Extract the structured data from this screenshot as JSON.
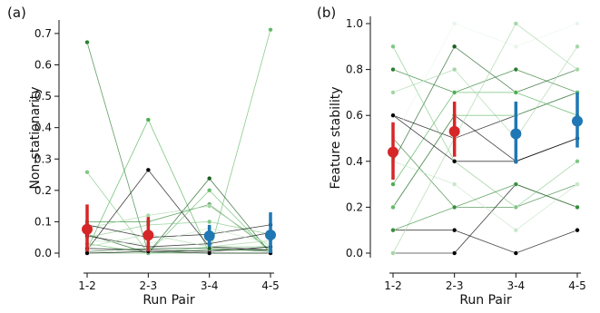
{
  "chart_data": [
    {
      "type": "line",
      "panel_label": "(a)",
      "xlabel": "Run Pair",
      "ylabel": "Non-stationarity",
      "categories": [
        "1-2",
        "2-3",
        "3-4",
        "4-5"
      ],
      "ylim": [
        0,
        0.72
      ],
      "yticks": [
        "0.0",
        "0.1",
        "0.2",
        "0.3",
        "0.4",
        "0.5",
        "0.6",
        "0.7"
      ],
      "series": [
        {
          "values": [
            0.672,
            0.0,
            0.01,
            0.01
          ],
          "color": "#2e7d32"
        },
        {
          "values": [
            0.012,
            0.425,
            0.0,
            0.0
          ],
          "color": "#4caf50"
        },
        {
          "values": [
            0.0,
            0.0,
            0.0,
            0.712
          ],
          "color": "#66bb6a"
        },
        {
          "values": [
            0.258,
            0.0,
            0.02,
            0.02
          ],
          "color": "#81c784"
        },
        {
          "values": [
            0.01,
            0.265,
            0.02,
            0.01
          ],
          "color": "#000000"
        },
        {
          "values": [
            0.06,
            0.0,
            0.238,
            0.0
          ],
          "color": "#1b5e20"
        },
        {
          "values": [
            0.03,
            0.0,
            0.2,
            0.0
          ],
          "color": "#66bb6a"
        },
        {
          "values": [
            0.1,
            0.1,
            0.155,
            0.01
          ],
          "color": "#388e3c"
        },
        {
          "values": [
            0.08,
            0.12,
            0.15,
            0.02
          ],
          "color": "#a5d6a7"
        },
        {
          "values": [
            0.05,
            0.09,
            0.1,
            0.06
          ],
          "color": "#81c784"
        },
        {
          "values": [
            0.09,
            0.05,
            0.06,
            0.09
          ],
          "color": "#000000"
        },
        {
          "values": [
            0.055,
            0.02,
            0.03,
            0.065
          ],
          "color": "#000000"
        },
        {
          "values": [
            0.04,
            0.03,
            0.08,
            0.03
          ],
          "color": "#c8e6c9"
        },
        {
          "values": [
            0.02,
            0.06,
            0.02,
            0.04
          ],
          "color": "#a5d6a7"
        },
        {
          "values": [
            0.015,
            0.01,
            0.005,
            0.02
          ],
          "color": "#000000"
        },
        {
          "values": [
            0.005,
            0.015,
            0.015,
            0.005
          ],
          "color": "#1b5e20"
        },
        {
          "values": [
            0.0,
            0.005,
            0.0,
            0.0
          ],
          "color": "#000000"
        }
      ],
      "summary": [
        {
          "x": "1-2",
          "mean": 0.076,
          "low": 0.005,
          "high": 0.155,
          "color": "#d62728"
        },
        {
          "x": "2-3",
          "mean": 0.057,
          "low": 0.005,
          "high": 0.115,
          "color": "#d62728"
        },
        {
          "x": "3-4",
          "mean": 0.055,
          "low": 0.02,
          "high": 0.09,
          "color": "#1f77b4"
        },
        {
          "x": "4-5",
          "mean": 0.058,
          "low": 0.0,
          "high": 0.13,
          "color": "#1f77b4"
        }
      ]
    },
    {
      "type": "line",
      "panel_label": "(b)",
      "xlabel": "Run Pair",
      "ylabel": "Feature stability",
      "categories": [
        "1-2",
        "2-3",
        "3-4",
        "4-5"
      ],
      "ylim": [
        0,
        1.0
      ],
      "yticks": [
        "0.0",
        "0.2",
        "0.4",
        "0.6",
        "0.8",
        "1.0"
      ],
      "series": [
        {
          "values": [
            0.0,
            0.0,
            0.3,
            0.2
          ],
          "color": "#000000"
        },
        {
          "values": [
            0.1,
            0.1,
            0.0,
            0.1
          ],
          "color": "#000000"
        },
        {
          "values": [
            0.2,
            0.6,
            0.4,
            0.5
          ],
          "color": "#000000"
        },
        {
          "values": [
            0.4,
            0.9,
            0.7,
            0.8
          ],
          "color": "#1b5e20"
        },
        {
          "values": [
            0.5,
            0.2,
            0.2,
            0.3
          ],
          "color": "#2e7d32"
        },
        {
          "values": [
            0.6,
            0.5,
            0.6,
            0.7
          ],
          "color": "#000000"
        },
        {
          "values": [
            0.8,
            0.7,
            0.8,
            0.7
          ],
          "color": "#2e7d32"
        },
        {
          "values": [
            0.9,
            0.4,
            0.2,
            0.4
          ],
          "color": "#81c784"
        },
        {
          "values": [
            0.3,
            0.7,
            0.7,
            0.6
          ],
          "color": "#4caf50"
        },
        {
          "values": [
            0.7,
            0.8,
            0.5,
            0.9
          ],
          "color": "#a5d6a7"
        },
        {
          "values": [
            0.5,
            1.0,
            0.9,
            1.0
          ],
          "color": "#e8f5e9"
        },
        {
          "values": [
            0.4,
            0.3,
            0.1,
            0.3
          ],
          "color": "#c8e6c9"
        },
        {
          "values": [
            0.0,
            0.5,
            1.0,
            0.8
          ],
          "color": "#a5d6a7"
        },
        {
          "values": [
            0.2,
            0.6,
            0.6,
            0.7
          ],
          "color": "#66bb6a"
        },
        {
          "values": [
            0.6,
            0.4,
            0.4,
            0.5
          ],
          "color": "#000000"
        },
        {
          "values": [
            0.1,
            0.2,
            0.3,
            0.2
          ],
          "color": "#388e3c"
        }
      ],
      "summary": [
        {
          "x": "1-2",
          "mean": 0.44,
          "low": 0.32,
          "high": 0.57,
          "color": "#d62728"
        },
        {
          "x": "2-3",
          "mean": 0.53,
          "low": 0.42,
          "high": 0.66,
          "color": "#d62728"
        },
        {
          "x": "3-4",
          "mean": 0.52,
          "low": 0.39,
          "high": 0.66,
          "color": "#1f77b4"
        },
        {
          "x": "4-5",
          "mean": 0.575,
          "low": 0.46,
          "high": 0.7,
          "color": "#1f77b4"
        }
      ]
    }
  ]
}
